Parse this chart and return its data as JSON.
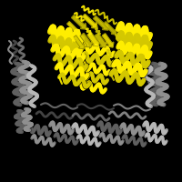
{
  "background_color": "#000000",
  "figure_size": [
    2.0,
    2.0
  ],
  "dpi": 100,
  "yellow": "#D4C800",
  "yellow_hi": "#FFEE00",
  "gray": "#909090",
  "gray_dark": "#606060",
  "gray_light": "#B8B8B8"
}
